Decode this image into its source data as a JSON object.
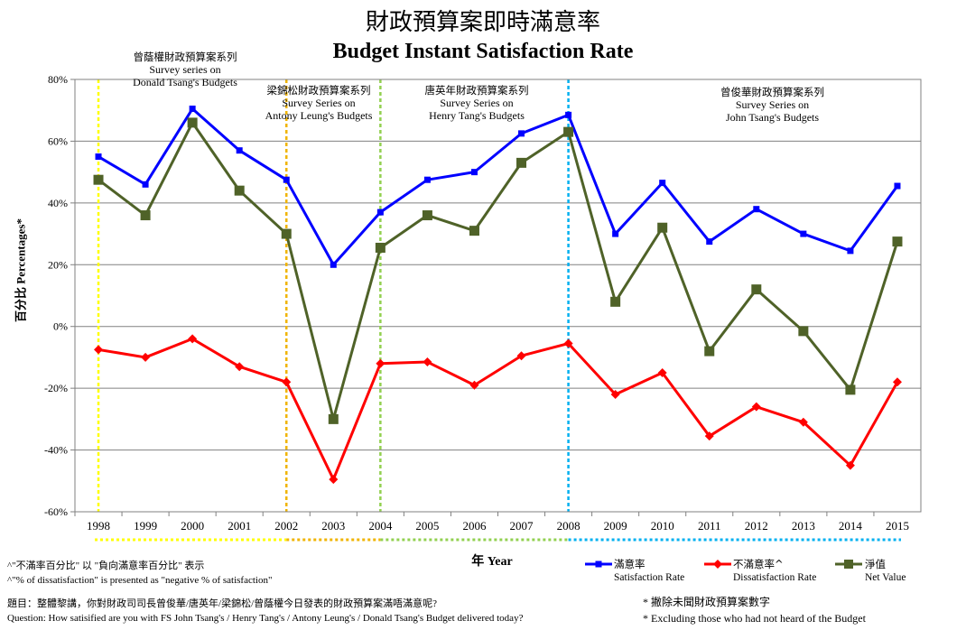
{
  "title_zh": "財政預算案即時滿意率",
  "title_en": "Budget Instant Satisfaction Rate",
  "eras": [
    {
      "zh": "曾蔭權財政預算案系列",
      "en1": "Survey  series on",
      "en2": "Donald Tsang's Budgets"
    },
    {
      "zh": "梁錦松財政預算案系列",
      "en1": "Survey Series on",
      "en2": "Antony Leung's Budgets"
    },
    {
      "zh": "唐英年財政預算案系列",
      "en1": "Survey Series  on",
      "en2": "Henry Tang's Budgets"
    },
    {
      "zh": "曾俊華財政預算案系列",
      "en1": "Survey Series  on",
      "en2": "John Tsang's Budgets"
    }
  ],
  "ylabel_zh": "百分比",
  "ylabel_en": "Percentages*",
  "xlabel_zh": "年",
  "xlabel_en": "Year",
  "notes": {
    "caret_zh": "^\"不滿率百分比\" 以 \"負向滿意率百分比\" 表示",
    "caret_en": "^\"% of dissatisfaction\" is presented as \"negative % of satisfaction\"",
    "question_zh": "題目：整體黎講，你對財政司司長曾俊華/唐英年/梁錦松/曾蔭權今日發表的財政預算案滿唔滿意呢?",
    "question_en": "Question: How satisified are you with FS John Tsang's / Henry Tang's / Antony Leung's / Donald Tsang's Budget delivered today?",
    "star_zh": "* 撇除未聞財政預算案數字",
    "star_en": "* Excluding  those who had not heard of the Budget"
  },
  "colors": {
    "satisfaction": "#0000ff",
    "dissatisfaction": "#ff0000",
    "net": "#4f6228",
    "era_donald": "#ffff00",
    "era_antony": "#f0b400",
    "era_henry": "#92d050",
    "era_john": "#00b0f0",
    "grid": "#808080"
  },
  "chart_data": {
    "type": "line",
    "x": [
      "1998",
      "1999",
      "2000",
      "2001",
      "2002",
      "2003",
      "2004",
      "2005",
      "2006",
      "2007",
      "2008",
      "2009",
      "2010",
      "2011",
      "2012",
      "2013",
      "2014",
      "2015"
    ],
    "ylim": [
      -60,
      80
    ],
    "yticks": [
      "80%",
      "60%",
      "40%",
      "20%",
      "0%",
      "-20%",
      "-40%",
      "-60%"
    ],
    "grid": true,
    "legend_position": "bottom-right",
    "series": [
      {
        "name_zh": "滿意率",
        "name": "Satisfaction Rate",
        "marker": "square",
        "values": [
          55,
          46,
          70.5,
          57,
          47.5,
          20,
          37,
          47.5,
          50,
          62.5,
          68.5,
          30,
          46.5,
          27.5,
          38,
          30,
          24.5,
          45.5
        ]
      },
      {
        "name_zh": "不滿意率^",
        "name": "Dissatisfaction Rate",
        "marker": "diamond",
        "values": [
          -7.5,
          -10,
          -4,
          -13,
          -18,
          -49.5,
          -12,
          -11.5,
          -19,
          -9.5,
          -5.5,
          -22,
          -15,
          -35.5,
          -26,
          -31,
          -45,
          -18
        ]
      },
      {
        "name_zh": "淨值",
        "name": "Net Value",
        "marker": "square",
        "values": [
          47.5,
          36,
          66,
          44,
          30,
          -30,
          25.5,
          36,
          31,
          53,
          63,
          8,
          32,
          -8,
          12,
          -1.5,
          -20.5,
          27.5
        ]
      }
    ]
  }
}
